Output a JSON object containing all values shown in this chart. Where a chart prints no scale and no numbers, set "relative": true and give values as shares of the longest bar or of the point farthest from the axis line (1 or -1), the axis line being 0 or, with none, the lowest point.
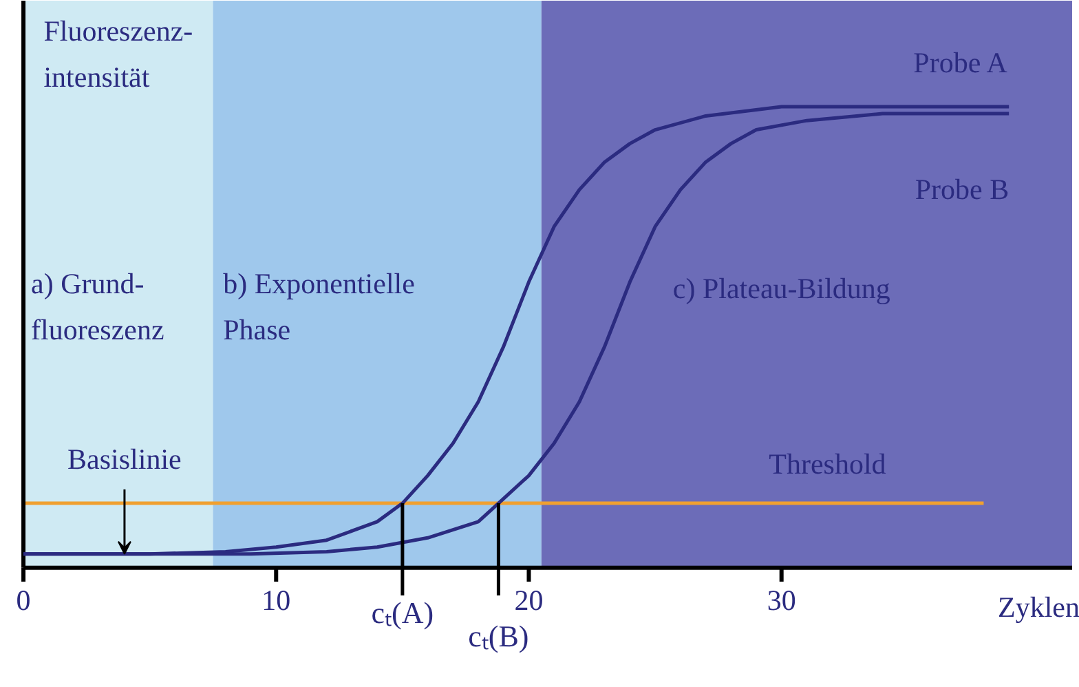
{
  "chart_data": {
    "type": "line",
    "relative": true,
    "ylabel": "Fluoreszenz-intensität",
    "xlabel": "Zyklen",
    "x": [
      0,
      5,
      8,
      10,
      12,
      14,
      15,
      16,
      17,
      18,
      19,
      20,
      21,
      22,
      23,
      24,
      25,
      27,
      30,
      39
    ],
    "series": [
      {
        "name": "Probe A",
        "color": "#2b2b80",
        "values": [
          0.03,
          0.03,
          0.035,
          0.045,
          0.06,
          0.1,
          0.14,
          0.2,
          0.27,
          0.36,
          0.48,
          0.62,
          0.74,
          0.82,
          0.88,
          0.92,
          0.95,
          0.98,
          1.0,
          1.0
        ]
      },
      {
        "name": "Probe B",
        "color": "#2b2b80",
        "x": [
          0,
          9,
          12,
          14,
          16,
          18,
          18.8,
          20,
          21,
          22,
          23,
          24,
          25,
          26,
          27,
          28,
          29,
          31,
          34,
          39
        ],
        "values": [
          0.03,
          0.03,
          0.035,
          0.045,
          0.065,
          0.1,
          0.14,
          0.2,
          0.27,
          0.36,
          0.48,
          0.62,
          0.74,
          0.82,
          0.88,
          0.92,
          0.95,
          0.97,
          0.985,
          0.985
        ]
      }
    ],
    "xlim": [
      0,
      41.5
    ],
    "xticks": [
      0,
      10,
      20,
      30
    ],
    "bands": [
      {
        "axis": "x",
        "from": 0,
        "to": 7.5,
        "label": "a) Grund-\nfluoreszenz",
        "color": "#cfeaf3"
      },
      {
        "axis": "x",
        "from": 7.5,
        "to": 20.5,
        "label": "b) Exponentielle\nPhase",
        "color": "#9fc8ec"
      },
      {
        "axis": "x",
        "from": 20.5,
        "to": 41.5,
        "label": "c) Plateau-Bildung",
        "color": "#6c6cb8"
      }
    ],
    "ref_lines": [
      {
        "axis": "y",
        "value": 0.14,
        "label": "Threshold",
        "color": "#f0a030"
      }
    ],
    "annotations": [
      {
        "text": "cₜ(A)",
        "x": 15,
        "y": 0.14
      },
      {
        "text": "cₜ(B)",
        "x": 18.8,
        "y": 0.14
      },
      {
        "text": "Basislinie",
        "x": 4,
        "y": 0.03
      }
    ],
    "line_style": "solid",
    "marker": "none",
    "grid": false,
    "legend": false
  }
}
